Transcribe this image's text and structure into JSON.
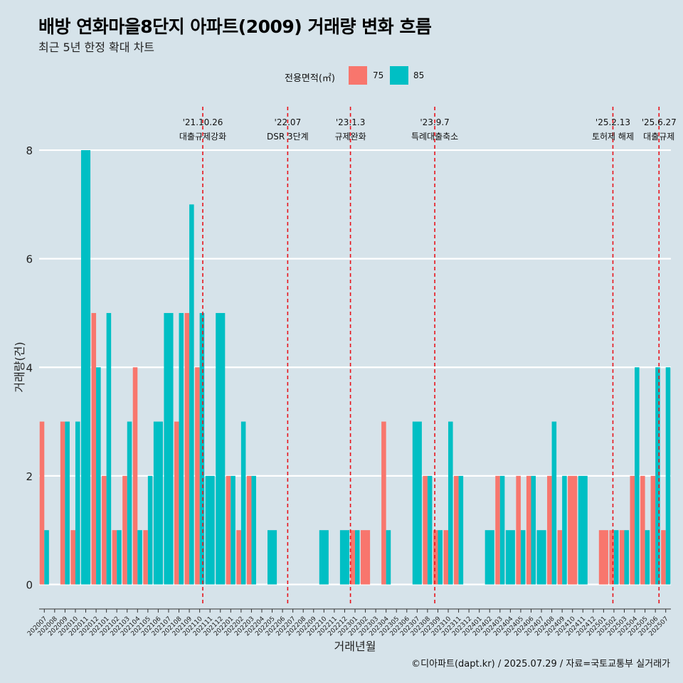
{
  "title": "배방 연화마을8단지 아파트(2009) 거래량 변화 흐름",
  "subtitle": "최근 5년 한정 확대 차트",
  "credit": "©디아파트(dapt.kr) / 2025.07.29 / 자료=국토교통부 실거래가",
  "colors": {
    "s75": "#f8766d",
    "s85": "#00bfc4",
    "event": "#e8131b",
    "grid": "#ffffff"
  },
  "legend": {
    "title": "전용면적(㎡)",
    "items": [
      "75",
      "85"
    ]
  },
  "chart_data": {
    "type": "bar",
    "title": "배방 연화마을8단지 아파트(2009) 거래량 변화 흐름",
    "xlabel": "거래년월",
    "ylabel": "거래량(건)",
    "ylim": [
      -0.4,
      8.8
    ],
    "yticks": [
      0,
      2,
      4,
      6,
      8
    ],
    "categories": [
      "202007",
      "202008",
      "202009",
      "202010",
      "202011",
      "202012",
      "202101",
      "202102",
      "202103",
      "202104",
      "202105",
      "202106",
      "202107",
      "202108",
      "202109",
      "202110",
      "202111",
      "202112",
      "202201",
      "202202",
      "202203",
      "202204",
      "202205",
      "202206",
      "202207",
      "202208",
      "202209",
      "202210",
      "202211",
      "202212",
      "202301",
      "202302",
      "202303",
      "202304",
      "202305",
      "202306",
      "202307",
      "202308",
      "202309",
      "202310",
      "202311",
      "202312",
      "202401",
      "202402",
      "202403",
      "202404",
      "202405",
      "202406",
      "202407",
      "202408",
      "202409",
      "202410",
      "202411",
      "202412",
      "202501",
      "202502",
      "202503",
      "202504",
      "202505",
      "202506",
      "202507"
    ],
    "series": [
      {
        "name": "75",
        "values": [
          3,
          0,
          3,
          1,
          0,
          5,
          2,
          1,
          2,
          4,
          1,
          0,
          0,
          3,
          5,
          4,
          0,
          0,
          2,
          1,
          2,
          0,
          0,
          0,
          0,
          0,
          0,
          0,
          0,
          0,
          1,
          1,
          0,
          3,
          0,
          0,
          0,
          2,
          1,
          1,
          2,
          0,
          0,
          0,
          2,
          0,
          2,
          2,
          0,
          2,
          1,
          2,
          0,
          0,
          1,
          1,
          1,
          2,
          2,
          2,
          1
        ]
      },
      {
        "name": "85",
        "values": [
          1,
          0,
          3,
          3,
          8,
          4,
          5,
          1,
          3,
          1,
          2,
          3,
          5,
          5,
          7,
          5,
          2,
          5,
          2,
          3,
          2,
          0,
          1,
          0,
          0,
          0,
          0,
          1,
          0,
          1,
          1,
          0,
          0,
          1,
          0,
          0,
          3,
          2,
          1,
          3,
          2,
          0,
          0,
          1,
          2,
          1,
          1,
          2,
          1,
          3,
          2,
          0,
          2,
          0,
          0,
          1,
          1,
          4,
          1,
          4,
          4
        ]
      }
    ],
    "events": [
      {
        "date": "'21.10.26",
        "label": "대출규제강화",
        "after": "202110",
        "frac": 0.8
      },
      {
        "date": "'22.07",
        "label": "DSR 3단계",
        "after": "202207",
        "frac": 0.0
      },
      {
        "date": "'23.1.3",
        "label": "규제완화",
        "after": "202301",
        "frac": 0.06
      },
      {
        "date": "'23.9.7",
        "label": "특례대출축소",
        "after": "202309",
        "frac": 0.2
      },
      {
        "date": "'25.2.13",
        "label": "토허제 해제",
        "after": "202502",
        "frac": 0.4
      },
      {
        "date": "'25.6.27",
        "label": "대출규제",
        "after": "202506",
        "frac": 0.85
      }
    ]
  }
}
